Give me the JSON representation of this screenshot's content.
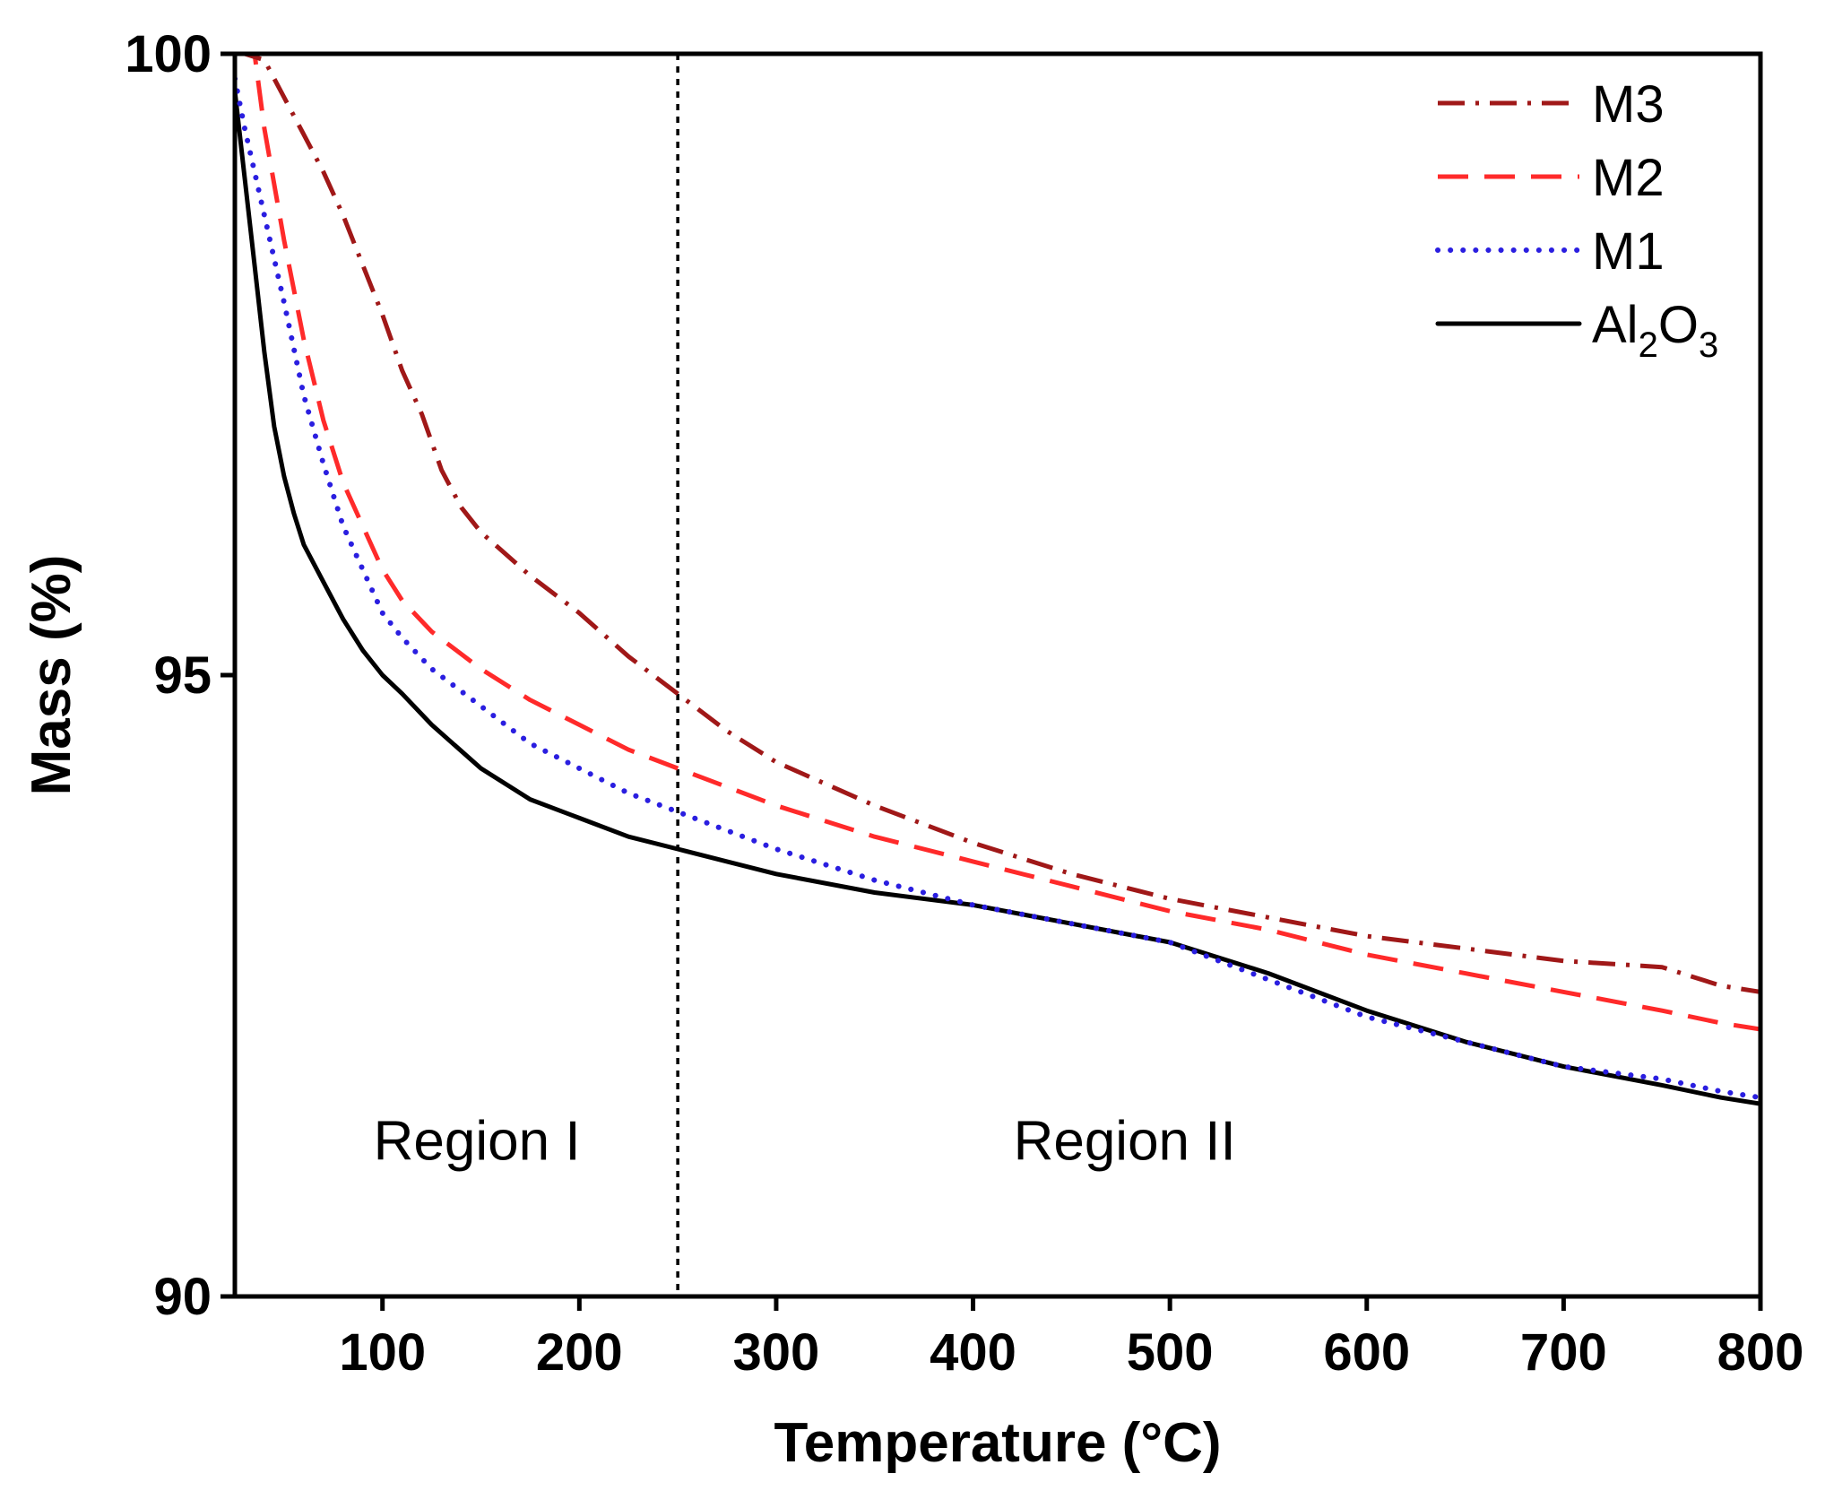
{
  "chart_data": {
    "type": "line",
    "xlabel": "Temperature (°C)",
    "ylabel": "Mass (%)",
    "xlim": [
      25,
      800
    ],
    "ylim": [
      90,
      100
    ],
    "xticks": [
      100,
      200,
      300,
      400,
      500,
      600,
      700,
      800
    ],
    "yticks": [
      90,
      95,
      100
    ],
    "grid": false,
    "legend_position": "top-right",
    "divider": {
      "x": 250,
      "style": "dotted"
    },
    "annotations": [
      {
        "text": "Region I",
        "x": 148,
        "y": 91.1
      },
      {
        "text": "Region II",
        "x": 477,
        "y": 91.1
      }
    ],
    "series": [
      {
        "name": "M3",
        "label_main": "M3",
        "style": "dashdot",
        "color": "#a01818",
        "x": [
          25,
          30,
          40,
          50,
          60,
          70,
          80,
          90,
          100,
          110,
          120,
          130,
          140,
          150,
          175,
          200,
          225,
          250,
          275,
          300,
          350,
          400,
          450,
          500,
          550,
          600,
          650,
          700,
          750,
          780,
          800
        ],
        "y": [
          100,
          100,
          99.95,
          99.65,
          99.35,
          99.05,
          98.7,
          98.3,
          97.9,
          97.45,
          97.1,
          96.65,
          96.35,
          96.15,
          95.8,
          95.5,
          95.15,
          94.85,
          94.55,
          94.3,
          93.95,
          93.65,
          93.4,
          93.2,
          93.05,
          92.9,
          92.8,
          92.7,
          92.65,
          92.5,
          92.45
        ]
      },
      {
        "name": "M2",
        "label_main": "M2",
        "style": "dashed",
        "color": "#ff2a2a",
        "x": [
          25,
          30,
          35,
          40,
          50,
          60,
          70,
          80,
          90,
          100,
          110,
          125,
          150,
          175,
          200,
          225,
          250,
          275,
          300,
          350,
          400,
          450,
          500,
          550,
          600,
          650,
          700,
          750,
          780,
          800
        ],
        "y": [
          100,
          100,
          100,
          99.4,
          98.5,
          97.7,
          97.05,
          96.55,
          96.2,
          95.85,
          95.6,
          95.35,
          95.05,
          94.8,
          94.6,
          94.4,
          94.25,
          94.1,
          93.95,
          93.7,
          93.5,
          93.3,
          93.1,
          92.95,
          92.75,
          92.6,
          92.45,
          92.3,
          92.2,
          92.15
        ]
      },
      {
        "name": "M1",
        "label_main": "M1",
        "style": "dotted",
        "color": "#2a1ee0",
        "x": [
          25,
          30,
          35,
          40,
          50,
          60,
          70,
          80,
          90,
          100,
          110,
          125,
          150,
          175,
          200,
          225,
          250,
          275,
          300,
          350,
          400,
          450,
          500,
          550,
          600,
          650,
          700,
          750,
          780,
          800
        ],
        "y": [
          99.8,
          99.4,
          99.05,
          98.7,
          98.0,
          97.25,
          96.7,
          96.2,
          95.85,
          95.5,
          95.3,
          95.05,
          94.75,
          94.45,
          94.25,
          94.05,
          93.9,
          93.75,
          93.6,
          93.35,
          93.15,
          93.0,
          92.85,
          92.55,
          92.25,
          92.05,
          91.85,
          91.75,
          91.65,
          91.6
        ]
      },
      {
        "name": "Al2O3",
        "label_main": "Al",
        "label_sub1": "2",
        "label_mid": "O",
        "label_sub2": "3",
        "style": "solid",
        "color": "#000000",
        "x": [
          25,
          30,
          35,
          40,
          45,
          50,
          55,
          60,
          70,
          80,
          90,
          100,
          110,
          125,
          150,
          175,
          200,
          225,
          250,
          275,
          300,
          350,
          400,
          450,
          500,
          550,
          600,
          650,
          700,
          750,
          780,
          800
        ],
        "y": [
          99.7,
          99.0,
          98.3,
          97.6,
          97.0,
          96.6,
          96.3,
          96.05,
          95.75,
          95.45,
          95.2,
          95.0,
          94.85,
          94.6,
          94.25,
          94.0,
          93.85,
          93.7,
          93.6,
          93.5,
          93.4,
          93.25,
          93.15,
          93.0,
          92.85,
          92.6,
          92.3,
          92.05,
          91.85,
          91.7,
          91.6,
          91.55
        ]
      }
    ]
  }
}
